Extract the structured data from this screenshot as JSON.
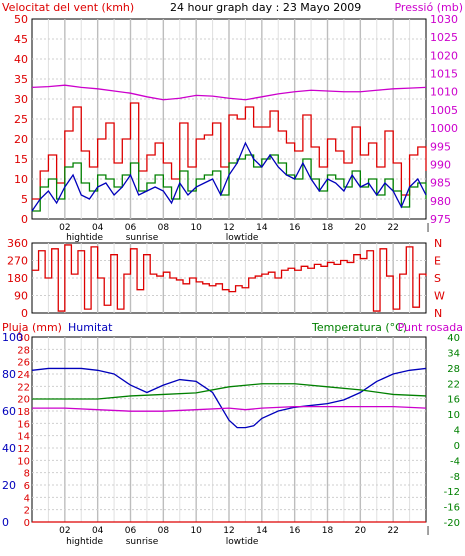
{
  "chart_data": [
    {
      "type": "line",
      "title": "24 hour graph day : 23 Mayo 2009",
      "left_label": "Velocitat del vent (kmh)",
      "right_label": "Pressió (mb)",
      "left_ticks": [
        "0",
        "5",
        "10",
        "15",
        "20",
        "25",
        "30",
        "35",
        "40",
        "45",
        "50"
      ],
      "right_ticks": [
        "975",
        "980",
        "985",
        "990",
        "995",
        "1000",
        "1005",
        "1010",
        "1015",
        "1020",
        "1025",
        "1030"
      ],
      "ylim_left": [
        0,
        50
      ],
      "ylim_right": [
        975,
        1030
      ],
      "hour_ticks": [
        "02",
        "04",
        "06",
        "08",
        "10",
        "12",
        "14",
        "16",
        "18",
        "20",
        "22"
      ],
      "markers": [
        {
          "label": "hightide",
          "hour": 3.2
        },
        {
          "label": "sunrise",
          "hour": 6.7
        },
        {
          "label": "lowtide",
          "hour": 12.8
        }
      ],
      "series": [
        {
          "name": "gust",
          "color": "#dd0000",
          "step": true,
          "x": [
            0,
            0.5,
            1,
            1.5,
            2,
            2.5,
            3,
            3.5,
            4,
            4.5,
            5,
            5.5,
            6,
            6.5,
            7,
            7.5,
            8,
            8.5,
            9,
            9.5,
            10,
            10.5,
            11,
            11.5,
            12,
            12.5,
            13,
            13.5,
            14,
            14.5,
            15,
            15.5,
            16,
            16.5,
            17,
            17.5,
            18,
            18.5,
            19,
            19.5,
            20,
            20.5,
            21,
            21.5,
            22,
            22.5,
            23,
            23.5,
            24
          ],
          "y": [
            5,
            12,
            16,
            9,
            22,
            28,
            17,
            13,
            20,
            24,
            14,
            20,
            29,
            12,
            16,
            19,
            14,
            10,
            24,
            13,
            20,
            21,
            24,
            13,
            26,
            25,
            28,
            23,
            23,
            27,
            22,
            19,
            17,
            26,
            18,
            13,
            20,
            17,
            14,
            23,
            16,
            19,
            13,
            22,
            14,
            6,
            16,
            18,
            12
          ]
        },
        {
          "name": "wind",
          "color": "#008000",
          "step": true,
          "x": [
            0,
            0.5,
            1,
            1.5,
            2,
            2.5,
            3,
            3.5,
            4,
            4.5,
            5,
            5.5,
            6,
            6.5,
            7,
            7.5,
            8,
            8.5,
            9,
            9.5,
            10,
            10.5,
            11,
            11.5,
            12,
            12.5,
            13,
            13.5,
            14,
            14.5,
            15,
            15.5,
            16,
            16.5,
            17,
            17.5,
            18,
            18.5,
            19,
            19.5,
            20,
            20.5,
            21,
            21.5,
            22,
            22.5,
            23,
            23.5,
            24
          ],
          "y": [
            2,
            8,
            10,
            5,
            13,
            14,
            9,
            7,
            11,
            10,
            8,
            11,
            14,
            7,
            9,
            11,
            8,
            5,
            12,
            7,
            10,
            11,
            12,
            6,
            14,
            15,
            16,
            13,
            15,
            16,
            14,
            11,
            10,
            15,
            10,
            7,
            11,
            10,
            8,
            12,
            8,
            10,
            6,
            10,
            7,
            3,
            8,
            9,
            5
          ]
        },
        {
          "name": "avg",
          "color": "#0000bb",
          "step": false,
          "x": [
            0,
            0.5,
            1,
            1.5,
            2,
            2.5,
            3,
            3.5,
            4,
            4.5,
            5,
            5.5,
            6,
            6.5,
            7,
            7.5,
            8,
            8.5,
            9,
            9.5,
            10,
            10.5,
            11,
            11.5,
            12,
            12.5,
            13,
            13.5,
            14,
            14.5,
            15,
            15.5,
            16,
            16.5,
            17,
            17.5,
            18,
            18.5,
            19,
            19.5,
            20,
            20.5,
            21,
            21.5,
            22,
            22.5,
            23,
            23.5,
            24
          ],
          "y": [
            2,
            5,
            7,
            4,
            8,
            11,
            6,
            5,
            8,
            9,
            6,
            8,
            11,
            6,
            7,
            8,
            7,
            4,
            9,
            6,
            8,
            9,
            10,
            6,
            11,
            14,
            19,
            15,
            13,
            16,
            13,
            11,
            10,
            14,
            10,
            7,
            10,
            9,
            7,
            11,
            8,
            9,
            6,
            9,
            7,
            3,
            8,
            10,
            6
          ]
        },
        {
          "name": "pressure",
          "color": "#cc00cc",
          "step": false,
          "axis": "right",
          "x": [
            0,
            1,
            2,
            3,
            4,
            5,
            6,
            7,
            8,
            9,
            10,
            11,
            12,
            13,
            14,
            15,
            16,
            17,
            18,
            19,
            20,
            21,
            22,
            23,
            24
          ],
          "y": [
            1011.2,
            1011.4,
            1011.8,
            1011.2,
            1010.8,
            1010.2,
            1009.6,
            1008.6,
            1007.8,
            1008.2,
            1009.0,
            1008.8,
            1008.2,
            1007.8,
            1008.6,
            1009.4,
            1010.0,
            1010.4,
            1010.2,
            1010.0,
            1010.0,
            1010.4,
            1010.8,
            1011.0,
            1011.2
          ]
        }
      ]
    },
    {
      "type": "line",
      "title": "",
      "left_ticks": [
        "0",
        "90",
        "180",
        "270",
        "360"
      ],
      "right_labels": [
        "N",
        "W",
        "S",
        "E",
        "N"
      ],
      "ylim": [
        0,
        360
      ],
      "series": [
        {
          "name": "direction",
          "color": "#dd0000",
          "step": true,
          "x": [
            0,
            0.4,
            0.8,
            1.2,
            1.6,
            2.0,
            2.4,
            2.8,
            3.2,
            3.6,
            4.0,
            4.4,
            4.8,
            5.2,
            5.6,
            6.0,
            6.4,
            6.8,
            7.2,
            7.6,
            8.0,
            8.4,
            8.8,
            9.2,
            9.6,
            10.0,
            10.4,
            10.8,
            11.2,
            11.6,
            12.0,
            12.4,
            12.8,
            13.2,
            13.6,
            14.0,
            14.4,
            14.8,
            15.2,
            15.6,
            16.0,
            16.4,
            16.8,
            17.2,
            17.6,
            18.0,
            18.4,
            18.8,
            19.2,
            19.6,
            20.0,
            20.4,
            20.8,
            21.2,
            21.6,
            22.0,
            22.4,
            22.8,
            23.2,
            23.6,
            24.0
          ],
          "y": [
            220,
            320,
            180,
            330,
            10,
            350,
            200,
            320,
            20,
            340,
            180,
            40,
            300,
            20,
            200,
            330,
            120,
            300,
            200,
            190,
            210,
            180,
            170,
            150,
            180,
            160,
            150,
            140,
            150,
            120,
            110,
            140,
            130,
            180,
            190,
            200,
            210,
            180,
            220,
            230,
            220,
            240,
            230,
            250,
            240,
            260,
            250,
            270,
            260,
            300,
            280,
            320,
            10,
            330,
            190,
            20,
            200,
            340,
            30,
            200,
            190
          ]
        }
      ]
    },
    {
      "type": "line",
      "title": "",
      "left_label": "Pluja (mm)",
      "left_label2": "Humitat",
      "right_label": "Temperatura (°C)",
      "right_label2": "Punt rosada",
      "rain_ticks": [
        "0",
        "2",
        "4",
        "6",
        "8",
        "10",
        "12",
        "14",
        "16",
        "18",
        "20",
        "22",
        "24",
        "26",
        "28",
        "30"
      ],
      "hum_ticks": [
        "0",
        "20",
        "40",
        "60",
        "80",
        "100"
      ],
      "temp_ticks": [
        "-20",
        "-16",
        "-12",
        "-8",
        "-4",
        "0",
        "4",
        "10",
        "16",
        "22",
        "28",
        "34",
        "40"
      ],
      "hour_ticks": [
        "02",
        "04",
        "06",
        "08",
        "10",
        "12",
        "14",
        "16",
        "18",
        "20",
        "22"
      ],
      "markers": [
        {
          "label": "hightide",
          "hour": 3.2
        },
        {
          "label": "sunrise",
          "hour": 6.7
        },
        {
          "label": "lowtide",
          "hour": 12.8
        }
      ],
      "series": [
        {
          "name": "rain",
          "color": "#dd0000",
          "axis": "rain",
          "x": [
            0,
            24
          ],
          "y": [
            0,
            0
          ]
        },
        {
          "name": "humidity",
          "color": "#0000bb",
          "axis": "hum",
          "x": [
            0,
            1,
            2,
            3,
            4,
            5,
            6,
            7,
            8,
            9,
            10,
            11,
            12,
            12.5,
            13,
            13.5,
            14,
            15,
            16,
            17,
            18,
            19,
            20,
            21,
            22,
            23,
            24
          ],
          "y": [
            82,
            83,
            83,
            83,
            82,
            80,
            74,
            70,
            74,
            77,
            76,
            70,
            55,
            51,
            51,
            52,
            56,
            60,
            62,
            63,
            64,
            66,
            70,
            76,
            80,
            82,
            83
          ]
        },
        {
          "name": "temperature",
          "color": "#008000",
          "axis": "temp",
          "x": [
            0,
            2,
            4,
            6,
            8,
            10,
            12,
            14,
            16,
            18,
            20,
            22,
            24
          ],
          "y": [
            20,
            20,
            20,
            21,
            21.5,
            22,
            24,
            25,
            25,
            24,
            23,
            21.5,
            21
          ]
        },
        {
          "name": "dewpoint",
          "color": "#cc00cc",
          "axis": "temp",
          "x": [
            0,
            2,
            4,
            6,
            8,
            10,
            12,
            13,
            14,
            16,
            18,
            20,
            22,
            24
          ],
          "y": [
            17,
            17,
            16.5,
            16,
            16,
            16.5,
            17,
            16.5,
            17,
            17.5,
            17.5,
            17.5,
            17.5,
            17
          ]
        }
      ]
    }
  ]
}
